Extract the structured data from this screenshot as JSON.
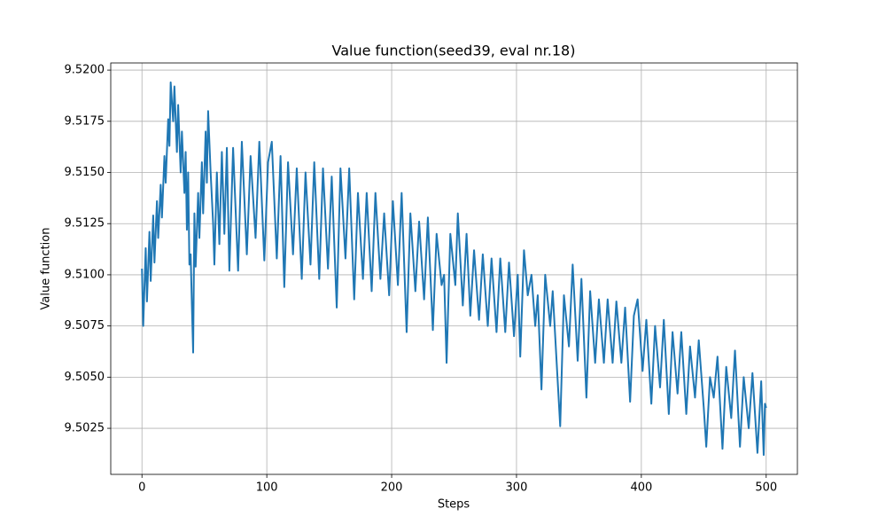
{
  "chart_data": {
    "type": "line",
    "title": "Value function(seed39, eval nr.18)",
    "x_label": "Steps",
    "y_label": "Value function",
    "grid": true,
    "xlim": [
      -25,
      525
    ],
    "ylim": [
      9.50025,
      9.52035
    ],
    "xticks": [
      0,
      100,
      200,
      300,
      400,
      500
    ],
    "yticks": [
      9.5025,
      {
        "value": 9.505,
        "label": "9.5050"
      },
      9.5075,
      {
        "value": 9.51,
        "label": "9.5100"
      },
      9.5125,
      {
        "value": 9.515,
        "label": "9.5150"
      },
      9.5175,
      {
        "value": 9.52,
        "label": "9.5200"
      }
    ],
    "series": [
      {
        "color": "#1f77b4",
        "x": [
          0,
          1,
          3,
          4,
          6,
          7,
          9,
          10,
          12,
          13,
          15,
          16,
          18,
          19,
          21,
          22,
          23,
          25,
          26,
          28,
          29,
          31,
          32,
          34,
          35,
          36,
          37,
          38,
          39,
          40,
          41,
          42,
          43,
          45,
          46,
          48,
          49,
          51,
          52,
          53,
          55,
          57,
          58,
          60,
          62,
          64,
          66,
          68,
          70,
          73,
          77,
          80,
          84,
          87,
          91,
          94,
          98,
          101,
          104,
          108,
          111,
          114,
          117,
          121,
          124,
          128,
          131,
          135,
          138,
          142,
          145,
          149,
          152,
          156,
          159,
          163,
          166,
          170,
          173,
          177,
          180,
          184,
          187,
          191,
          194,
          198,
          201,
          205,
          208,
          212,
          215,
          219,
          222,
          226,
          229,
          233,
          236,
          240,
          242,
          244,
          247,
          251,
          253,
          257,
          260,
          263,
          266,
          270,
          273,
          277,
          280,
          284,
          287,
          291,
          294,
          298,
          301,
          303,
          306,
          309,
          312,
          315,
          317,
          320,
          323,
          327,
          329,
          333,
          335,
          338,
          342,
          345,
          349,
          352,
          356,
          359,
          363,
          366,
          370,
          373,
          377,
          380,
          384,
          387,
          391,
          394,
          397,
          401,
          404,
          408,
          411,
          415,
          418,
          422,
          425,
          429,
          432,
          436,
          439,
          443,
          446,
          450,
          452,
          455,
          458,
          461,
          465,
          468,
          472,
          475,
          479,
          482,
          486,
          489,
          493,
          496,
          498,
          499,
          500
        ],
        "values": [
          9.5103,
          9.5075,
          9.5113,
          9.5087,
          9.5121,
          9.5097,
          9.5129,
          9.5106,
          9.5136,
          9.5118,
          9.5144,
          9.5128,
          9.5158,
          9.5145,
          9.5176,
          9.5163,
          9.5194,
          9.5175,
          9.5192,
          9.516,
          9.5183,
          9.515,
          9.517,
          9.514,
          9.516,
          9.5122,
          9.515,
          9.5105,
          9.511,
          9.5085,
          9.5062,
          9.513,
          9.5104,
          9.514,
          9.5118,
          9.5155,
          9.513,
          9.517,
          9.5145,
          9.518,
          9.515,
          9.5125,
          9.5105,
          9.515,
          9.5115,
          9.516,
          9.512,
          9.5162,
          9.5102,
          9.5162,
          9.5102,
          9.5165,
          9.511,
          9.5158,
          9.5118,
          9.5165,
          9.5107,
          9.5155,
          9.5165,
          9.5108,
          9.5158,
          9.5094,
          9.5155,
          9.511,
          9.5152,
          9.5098,
          9.515,
          9.5105,
          9.5155,
          9.5098,
          9.5152,
          9.5103,
          9.5148,
          9.5084,
          9.5152,
          9.5108,
          9.5152,
          9.5088,
          9.514,
          9.5098,
          9.514,
          9.5092,
          9.514,
          9.5098,
          9.513,
          9.509,
          9.5136,
          9.5095,
          9.514,
          9.5072,
          9.513,
          9.5092,
          9.5126,
          9.5088,
          9.5128,
          9.5073,
          9.512,
          9.5095,
          9.51,
          9.5057,
          9.512,
          9.5095,
          9.513,
          9.5085,
          9.512,
          9.508,
          9.5112,
          9.5078,
          9.511,
          9.5075,
          9.5108,
          9.5072,
          9.5108,
          9.5072,
          9.5106,
          9.507,
          9.51,
          9.506,
          9.5112,
          9.509,
          9.51,
          9.5075,
          9.509,
          9.5044,
          9.51,
          9.5075,
          9.5092,
          9.5048,
          9.5026,
          9.509,
          9.5065,
          9.5105,
          9.5058,
          9.5098,
          9.504,
          9.5092,
          9.5057,
          9.5088,
          9.5057,
          9.5088,
          9.5057,
          9.5087,
          9.5057,
          9.5084,
          9.5038,
          9.508,
          9.5088,
          9.5053,
          9.5078,
          9.5037,
          9.5075,
          9.5045,
          9.5078,
          9.5032,
          9.5072,
          9.5042,
          9.5072,
          9.5032,
          9.5065,
          9.504,
          9.5068,
          9.5035,
          9.5016,
          9.505,
          9.504,
          9.506,
          9.5015,
          9.5055,
          9.503,
          9.5063,
          9.5016,
          9.505,
          9.5025,
          9.5052,
          9.5013,
          9.5048,
          9.5012,
          9.5037,
          9.5035
        ]
      }
    ]
  }
}
